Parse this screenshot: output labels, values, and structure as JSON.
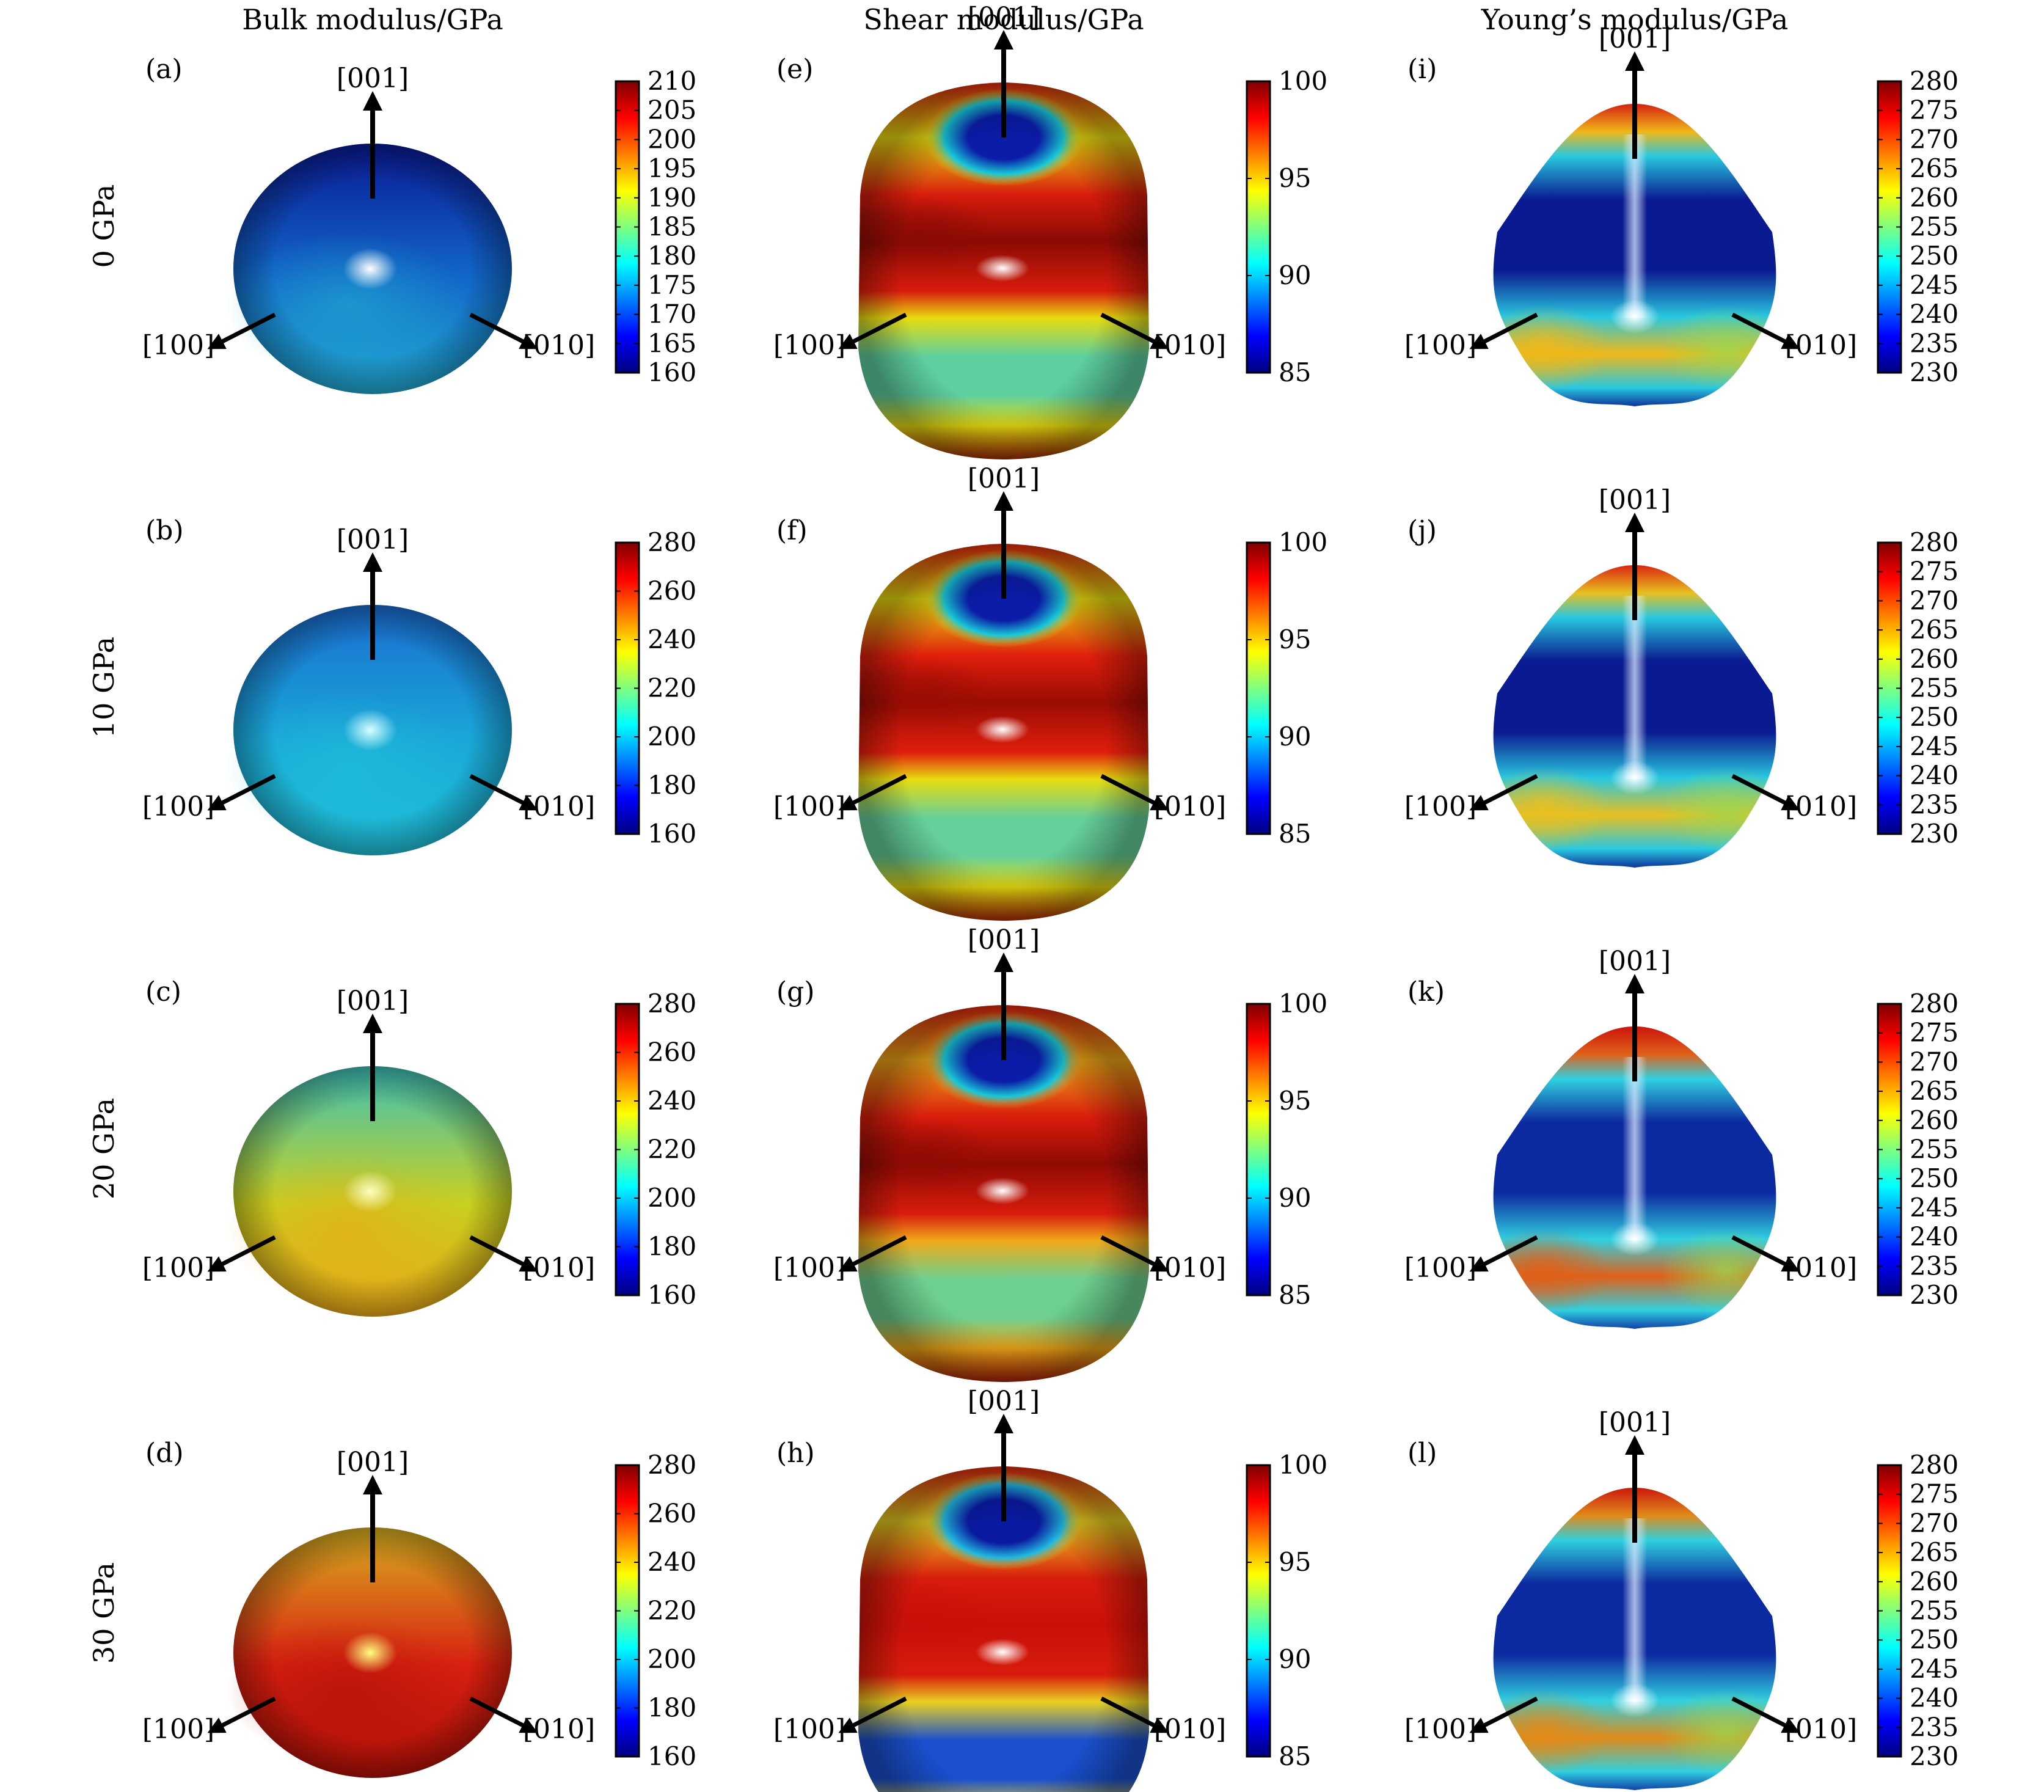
{
  "column_headers": [
    "Bulk modulus/GPa",
    "Shear modulus/GPa",
    "Young’s modulus/GPa"
  ],
  "row_headers": [
    "0 GPa",
    "10 GPa",
    "20 GPa",
    "30 GPa"
  ],
  "axes": {
    "up": "[001]",
    "left": "[100]",
    "right": "[010]"
  },
  "colorbar_ticks": {
    "bulk_0": [
      "210",
      "205",
      "200",
      "195",
      "190",
      "185",
      "180",
      "175",
      "170",
      "165",
      "160"
    ],
    "bulk_p": [
      "280",
      "260",
      "240",
      "220",
      "200",
      "180",
      "160"
    ],
    "shear": [
      "100",
      "95",
      "90",
      "85"
    ],
    "young": [
      "280",
      "275",
      "270",
      "265",
      "260",
      "255",
      "250",
      "245",
      "240",
      "235",
      "230"
    ]
  },
  "panels": [
    {
      "label": "(a)",
      "kind": "bulk",
      "cb": "bulk_0",
      "colors": {
        "top": "#0a1a96",
        "mid": "#1268c8",
        "low": "#22aad2",
        "spot": "#ffffff"
      }
    },
    {
      "label": "(e)",
      "kind": "shear",
      "cb": "shear",
      "colors": {
        "top": "#0b1ca8",
        "r1": "#18c8d8",
        "r2": "#e8dc10",
        "r3": "#d81c0c",
        "dark": "#8a0a04",
        "band": "#5ed0a0"
      }
    },
    {
      "label": "(i)",
      "kind": "young",
      "cb": "young",
      "colors": {
        "cap": "#d01010",
        "ring": "#28c8e0",
        "body": "#0a1a90",
        "bottom": "#f0b818",
        "spot": "#ffffff"
      }
    },
    {
      "label": "(b)",
      "kind": "bulk",
      "cb": "bulk_p",
      "colors": {
        "top": "#1a6cd0",
        "mid": "#1aa8d8",
        "low": "#20c0d8",
        "spot": "#d8ffff"
      }
    },
    {
      "label": "(f)",
      "kind": "shear",
      "cb": "shear",
      "colors": {
        "top": "#0b1ca8",
        "r1": "#18c8d8",
        "r2": "#e8dc10",
        "r3": "#e01e0c",
        "dark": "#9a0c04",
        "band": "#66d09a"
      }
    },
    {
      "label": "(j)",
      "kind": "young",
      "cb": "young",
      "colors": {
        "cap": "#d81410",
        "ring": "#28c8e0",
        "body": "#0a1a90",
        "bottom": "#e8c020",
        "spot": "#ffffff"
      }
    },
    {
      "label": "(c)",
      "kind": "bulk",
      "cb": "bulk_p",
      "colors": {
        "top": "#3cc0b8",
        "mid": "#c8d020",
        "low": "#e8a818",
        "spot": "#ffffc0"
      }
    },
    {
      "label": "(g)",
      "kind": "shear",
      "cb": "shear",
      "colors": {
        "top": "#0b1ca8",
        "r1": "#18c8d8",
        "r2": "#f0a818",
        "r3": "#d81c0c",
        "dark": "#900a04",
        "band": "#6ed090"
      }
    },
    {
      "label": "(k)",
      "kind": "young",
      "cb": "young",
      "colors": {
        "cap": "#c80c0c",
        "ring": "#30d0e0",
        "body": "#0c2aa0",
        "bottom": "#e06018",
        "spot": "#ffffff"
      }
    },
    {
      "label": "(d)",
      "kind": "bulk",
      "cb": "bulk_p",
      "colors": {
        "top": "#d8b020",
        "mid": "#d82010",
        "low": "#b01008",
        "spot": "#ffff80"
      }
    },
    {
      "label": "(h)",
      "kind": "shear",
      "cb": "shear",
      "colors": {
        "top": "#0a1aa0",
        "r1": "#20b8e0",
        "r2": "#e8d020",
        "r3": "#d81c0c",
        "dark": "#c81008",
        "band": "#1a50d0"
      }
    },
    {
      "label": "(l)",
      "kind": "young",
      "cb": "young",
      "colors": {
        "cap": "#c80c0c",
        "ring": "#30d0e0",
        "body": "#0c2aa0",
        "bottom": "#e08a18",
        "spot": "#ffffff"
      }
    }
  ]
}
